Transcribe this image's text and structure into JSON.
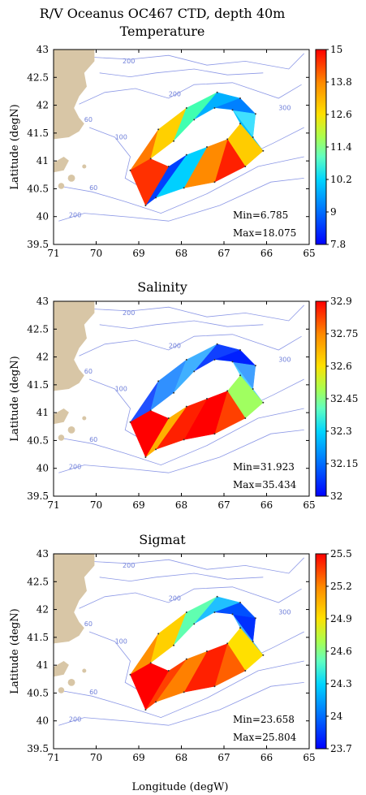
{
  "title": "R/V Oceanus OC467 CTD, depth 40m",
  "xlabel": "Longitude (degW)",
  "ylabel": "Latitude (degN)",
  "xticks": [
    "71",
    "70",
    "69",
    "68",
    "67",
    "66",
    "65"
  ],
  "yticks": [
    "43",
    "42.5",
    "42",
    "41.5",
    "41",
    "40.5",
    "40",
    "39.5"
  ],
  "contour_labels": [
    "200",
    "60",
    "100",
    "200",
    "100",
    "300",
    "60",
    "200",
    "60"
  ],
  "colors": {
    "land": "#d8c6a6",
    "contour": "#8c98e6"
  },
  "chart_data": [
    {
      "type": "heatmap",
      "title": "Temperature",
      "colorbar_ticks": [
        "15",
        "13.8",
        "12.6",
        "11.4",
        "10.2",
        "9",
        "7.8"
      ],
      "colorbar_range": [
        7.8,
        15
      ],
      "min_label": "Min=6.785",
      "max_label": "Max=18.075",
      "xlim": [
        71,
        65
      ],
      "ylim": [
        39.5,
        43
      ]
    },
    {
      "type": "heatmap",
      "title": "Salinity",
      "colorbar_ticks": [
        "32.9",
        "32.75",
        "32.6",
        "32.45",
        "32.3",
        "32.15",
        "32"
      ],
      "colorbar_range": [
        32,
        32.9
      ],
      "min_label": "Min=31.923",
      "max_label": "Max=35.434",
      "xlim": [
        71,
        65
      ],
      "ylim": [
        39.5,
        43
      ]
    },
    {
      "type": "heatmap",
      "title": "Sigmat",
      "colorbar_ticks": [
        "25.5",
        "25.2",
        "24.9",
        "24.6",
        "24.3",
        "24",
        "23.7"
      ],
      "colorbar_range": [
        23.7,
        25.5
      ],
      "min_label": "Min=23.658",
      "max_label": "Max=25.804",
      "xlim": [
        71,
        65
      ],
      "ylim": [
        39.5,
        43
      ]
    }
  ]
}
